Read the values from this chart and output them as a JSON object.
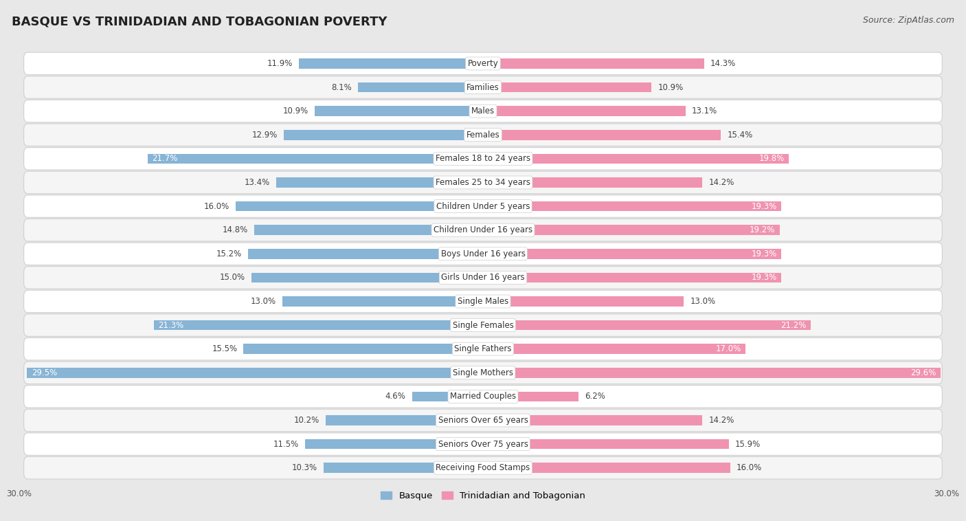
{
  "title": "BASQUE VS TRINIDADIAN AND TOBAGONIAN POVERTY",
  "source": "Source: ZipAtlas.com",
  "categories": [
    "Poverty",
    "Families",
    "Males",
    "Females",
    "Females 18 to 24 years",
    "Females 25 to 34 years",
    "Children Under 5 years",
    "Children Under 16 years",
    "Boys Under 16 years",
    "Girls Under 16 years",
    "Single Males",
    "Single Females",
    "Single Fathers",
    "Single Mothers",
    "Married Couples",
    "Seniors Over 65 years",
    "Seniors Over 75 years",
    "Receiving Food Stamps"
  ],
  "basque_values": [
    11.9,
    8.1,
    10.9,
    12.9,
    21.7,
    13.4,
    16.0,
    14.8,
    15.2,
    15.0,
    13.0,
    21.3,
    15.5,
    29.5,
    4.6,
    10.2,
    11.5,
    10.3
  ],
  "trinidadian_values": [
    14.3,
    10.9,
    13.1,
    15.4,
    19.8,
    14.2,
    19.3,
    19.2,
    19.3,
    19.3,
    13.0,
    21.2,
    17.0,
    29.6,
    6.2,
    14.2,
    15.9,
    16.0
  ],
  "basque_color": "#88b4d5",
  "trinidadian_color": "#f093b0",
  "basque_label": "Basque",
  "trinidadian_label": "Trinidadian and Tobagonian",
  "x_max": 30.0,
  "bg_color": "#e8e8e8",
  "row_color_odd": "#f5f5f5",
  "row_color_even": "#ffffff",
  "row_border_color": "#d0d0d0",
  "label_fontsize": 8.5,
  "value_fontsize": 8.5,
  "title_fontsize": 13,
  "source_fontsize": 9,
  "white_label_threshold": 17.0
}
